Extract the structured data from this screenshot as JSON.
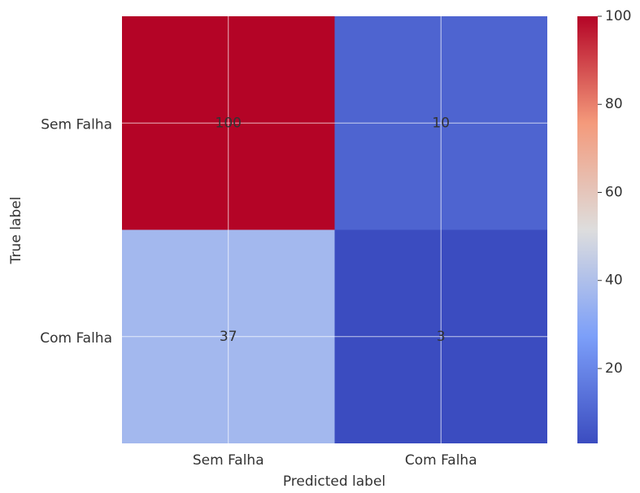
{
  "chart_data": {
    "type": "heatmap",
    "xlabel": "Predicted label",
    "ylabel": "True label",
    "x_categories": [
      "Sem Falha",
      "Com Falha"
    ],
    "y_categories": [
      "Sem Falha",
      "Com Falha"
    ],
    "values": [
      [
        100,
        10
      ],
      [
        37,
        3
      ]
    ],
    "colormap": "coolwarm",
    "clim": [
      3,
      100
    ],
    "cticks": [
      20,
      40,
      60,
      80,
      100
    ],
    "grid": true
  }
}
